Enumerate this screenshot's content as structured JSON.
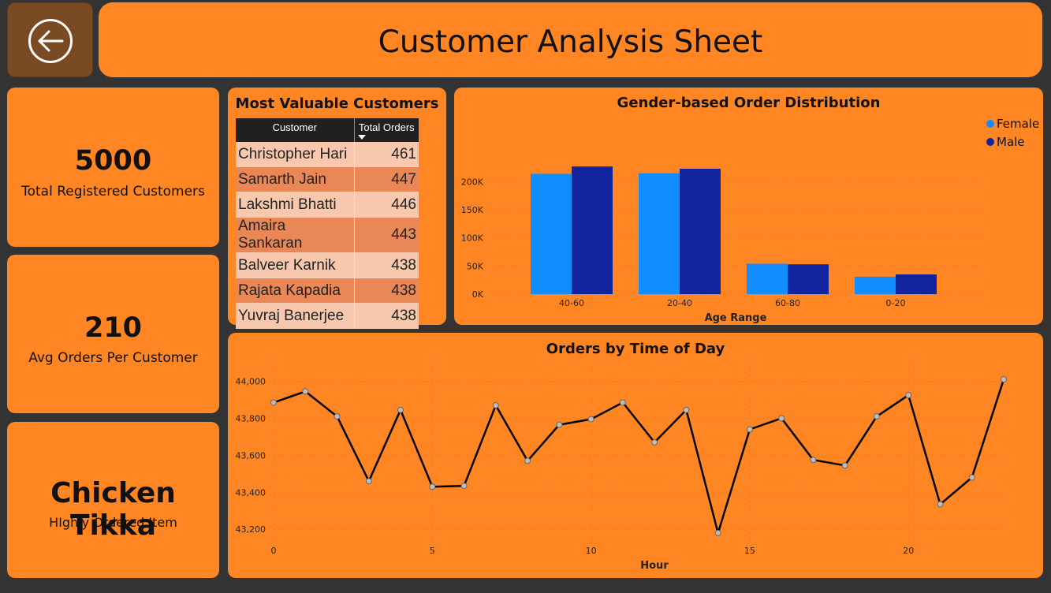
{
  "header": {
    "title": "Customer Analysis Sheet"
  },
  "kpis": [
    {
      "value": "5000",
      "label": "Total Registered Customers"
    },
    {
      "value": "210",
      "label": "Avg Orders Per Customer"
    },
    {
      "value": "Chicken Tikka",
      "label": "HIghly Ordered Item"
    }
  ],
  "most_valuable": {
    "title": "Most Valuable Customers",
    "columns": [
      "Customer",
      "Total Orders"
    ],
    "rows": [
      {
        "name": "Christopher Hari",
        "orders": "461"
      },
      {
        "name": "Samarth Jain",
        "orders": "447"
      },
      {
        "name": "Lakshmi Bhatti",
        "orders": "446"
      },
      {
        "name": "Amaira Sankaran",
        "orders": "443"
      },
      {
        "name": "Balveer Karnik",
        "orders": "438"
      },
      {
        "name": "Rajata Kapadia",
        "orders": "438"
      },
      {
        "name": "Yuvraj Banerjee",
        "orders": "438"
      }
    ]
  },
  "chart_data": [
    {
      "type": "bar",
      "title": "Gender-based Order Distribution",
      "xlabel": "Age Range",
      "ylabel": "",
      "categories": [
        "40-60",
        "20-40",
        "60-80",
        "0-20"
      ],
      "series": [
        {
          "name": "Female",
          "color": "#118dff",
          "values": [
            214000,
            215000,
            54000,
            31000
          ]
        },
        {
          "name": "Male",
          "color": "#12239e",
          "values": [
            227000,
            223000,
            53000,
            35000
          ]
        }
      ],
      "ylim": [
        0,
        230000
      ],
      "yticks": [
        "0K",
        "50K",
        "100K",
        "150K",
        "200K"
      ],
      "ytick_values": [
        0,
        50000,
        100000,
        150000,
        200000
      ],
      "legend": "top-right",
      "grid": true
    },
    {
      "type": "line",
      "title": "Orders by Time of Day",
      "xlabel": "Hour",
      "ylabel": "",
      "x": [
        0,
        1,
        2,
        3,
        4,
        5,
        6,
        7,
        8,
        9,
        10,
        11,
        12,
        13,
        14,
        15,
        16,
        17,
        18,
        19,
        20,
        21,
        22,
        23
      ],
      "series": [
        {
          "name": "",
          "color": "#000000",
          "values": [
            43885,
            43945,
            43810,
            43460,
            43845,
            43430,
            43435,
            43870,
            43570,
            43765,
            43795,
            43885,
            43670,
            43845,
            43180,
            43740,
            43800,
            43575,
            43545,
            43810,
            43925,
            43335,
            43480,
            44010
          ]
        }
      ],
      "xticks": [
        "0",
        "5",
        "10",
        "15",
        "20"
      ],
      "xtick_values": [
        0,
        5,
        10,
        15,
        20
      ],
      "yticks": [
        "43,200",
        "43,400",
        "43,600",
        "43,800",
        "44,000"
      ],
      "ytick_values": [
        43200,
        43400,
        43600,
        43800,
        44000
      ],
      "xlim": [
        0,
        23
      ],
      "ylim": [
        43120,
        44100
      ],
      "grid": true
    }
  ],
  "colors": {
    "panel": "#ff8623",
    "background": "#333333",
    "back_tile": "#7a4a23"
  },
  "icons": {
    "back": "arrow-left-circle-icon"
  }
}
